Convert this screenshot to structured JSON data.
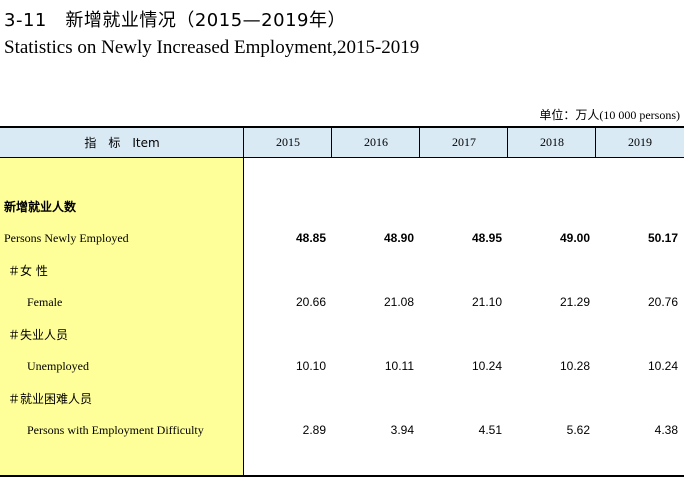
{
  "title": {
    "cn": "3-11　新增就业情况（2015—2019年）",
    "en": "Statistics on Newly Increased Employment,2015-2019"
  },
  "unit": {
    "cn": "单位：万人",
    "en": "(10 000 persons)"
  },
  "header": {
    "indicator": "指　标　Item",
    "years": [
      "2015",
      "2016",
      "2017",
      "2018",
      "2019"
    ]
  },
  "rows": [
    {
      "label_cn": "新增就业人数",
      "label_en": "Persons Newly Employed",
      "values": [
        "48.85",
        "48.90",
        "48.95",
        "49.00",
        "50.17"
      ]
    },
    {
      "label_cn": "＃女  性",
      "label_en": "Female",
      "values": [
        "20.66",
        "21.08",
        "21.10",
        "21.29",
        "20.76"
      ]
    },
    {
      "label_cn": "＃失业人员",
      "label_en": "Unemployed",
      "values": [
        "10.10",
        "10.11",
        "10.24",
        "10.28",
        "10.24"
      ]
    },
    {
      "label_cn": "＃就业困难人员",
      "label_en": "Persons with Employment Difficulty",
      "values": [
        "2.89",
        "3.94",
        "4.51",
        "5.62",
        "4.38"
      ]
    }
  ]
}
